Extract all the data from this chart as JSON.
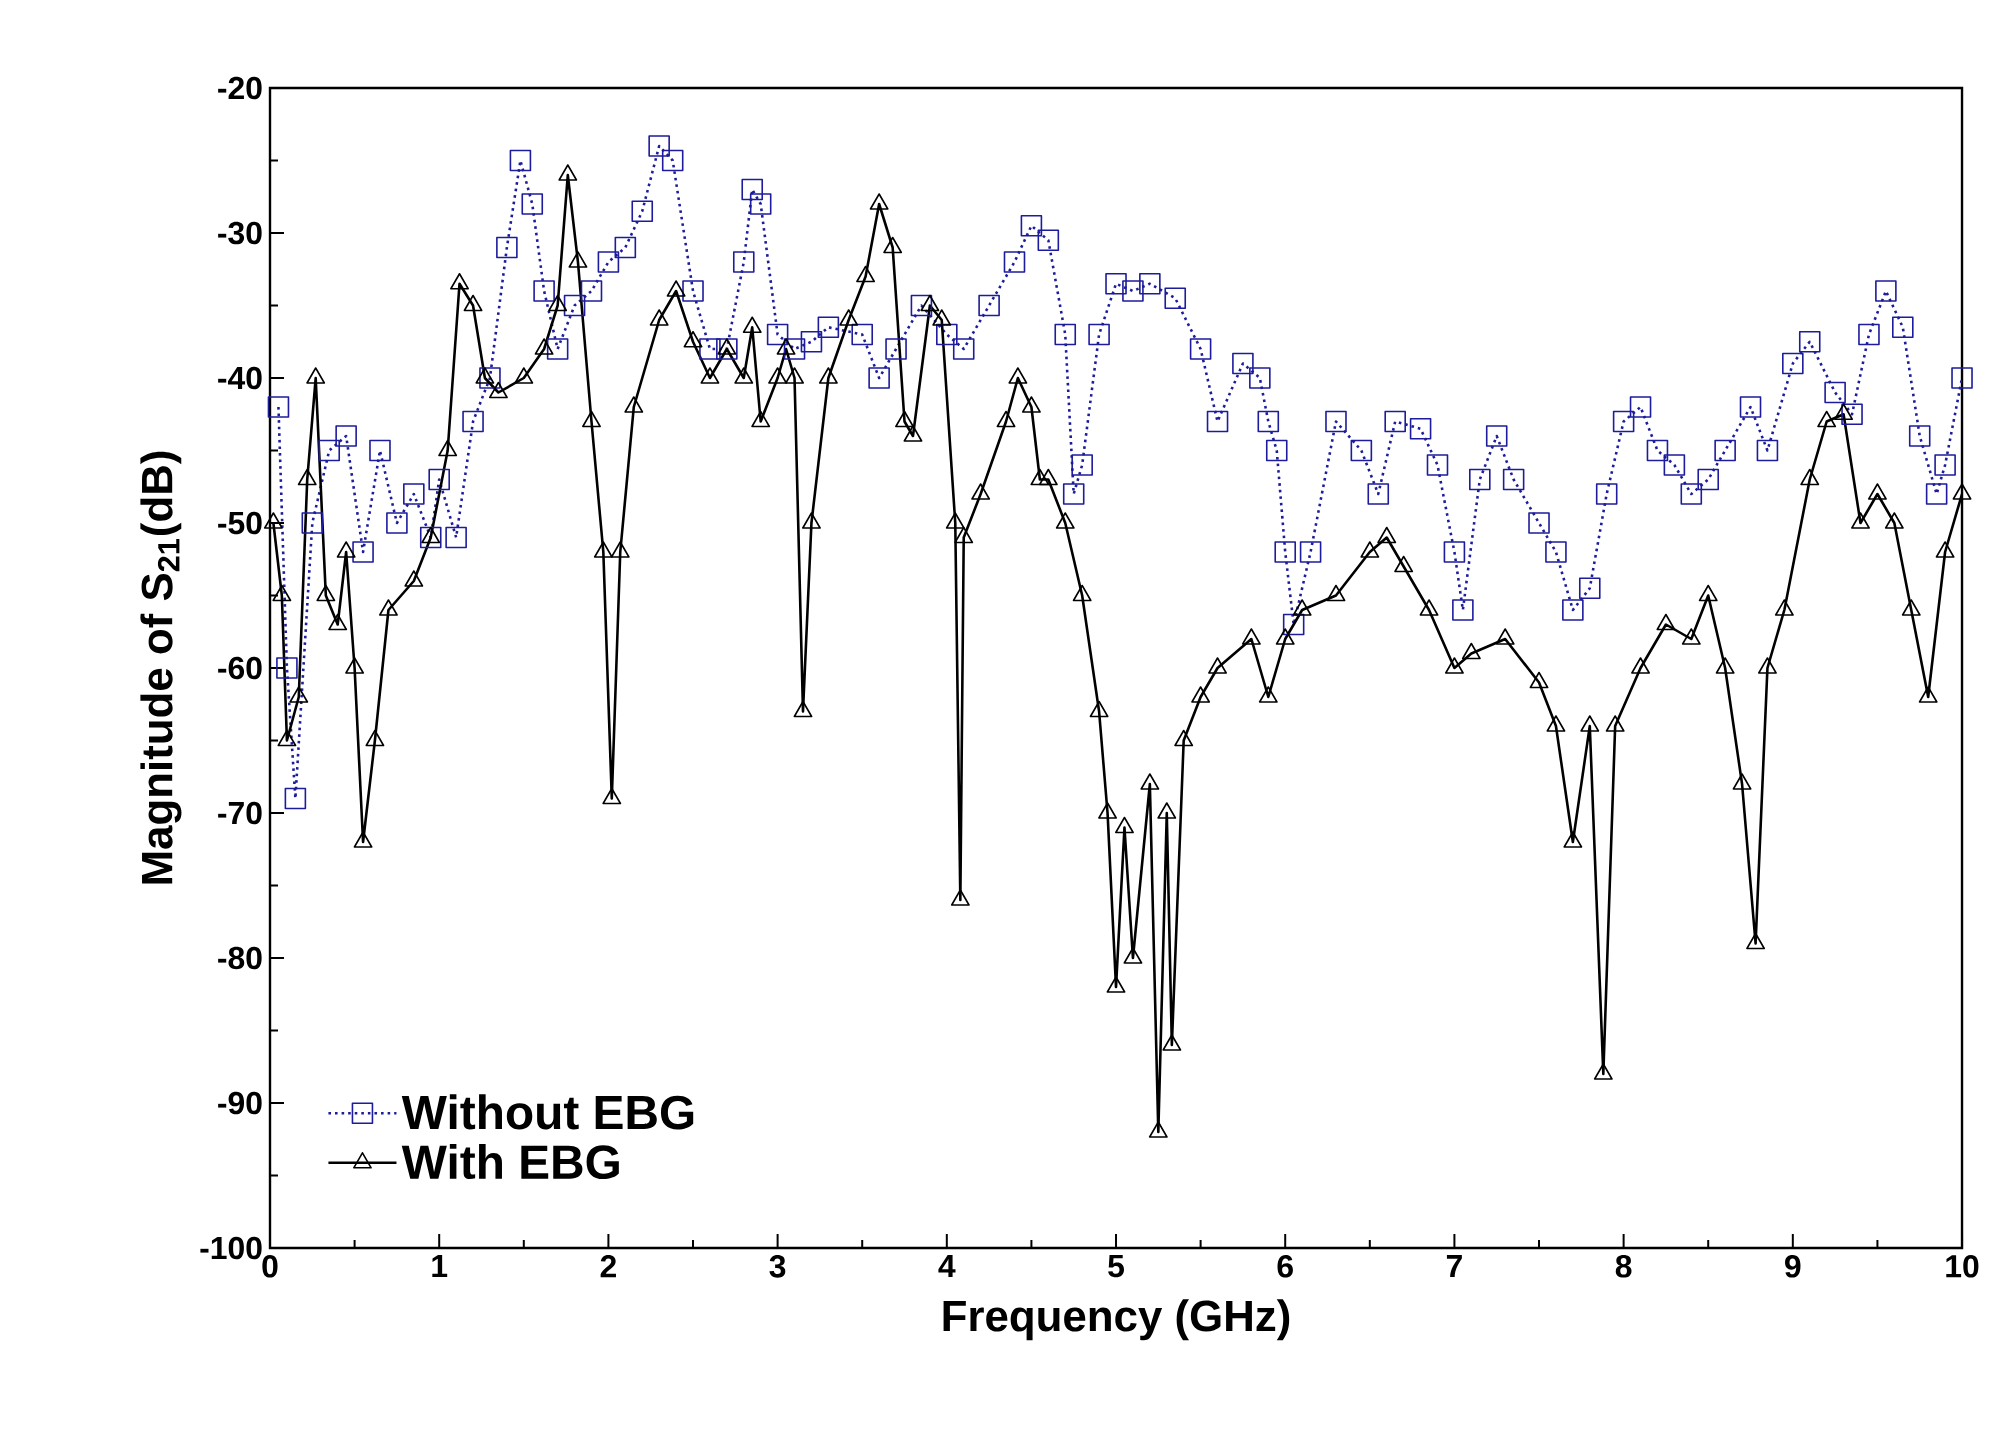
{
  "chart_data": {
    "type": "line",
    "xlabel": "Frequency (GHz)",
    "ylabel": "Magnitude of S$_{21}$(dB)",
    "xlim": [
      0,
      10
    ],
    "ylim": [
      -100,
      -20
    ],
    "xticks": [
      0,
      1,
      2,
      3,
      4,
      5,
      6,
      7,
      8,
      9,
      10
    ],
    "yticks": [
      -100,
      -90,
      -80,
      -70,
      -60,
      -50,
      -40,
      -30,
      -20
    ],
    "grid": false,
    "legend": "bottom left",
    "series": [
      {
        "name": "Without EBG",
        "color": "#1c1c9c",
        "marker": "square",
        "line_style": "dotted",
        "x": [
          0.05,
          0.1,
          0.15,
          0.25,
          0.35,
          0.45,
          0.55,
          0.65,
          0.75,
          0.85,
          0.95,
          1.0,
          1.1,
          1.2,
          1.3,
          1.4,
          1.48,
          1.55,
          1.62,
          1.7,
          1.8,
          1.9,
          2.0,
          2.1,
          2.2,
          2.3,
          2.38,
          2.5,
          2.6,
          2.7,
          2.8,
          2.85,
          2.9,
          3.0,
          3.1,
          3.2,
          3.3,
          3.5,
          3.6,
          3.7,
          3.85,
          4.0,
          4.1,
          4.25,
          4.4,
          4.5,
          4.6,
          4.7,
          4.75,
          4.8,
          4.9,
          5.0,
          5.1,
          5.2,
          5.35,
          5.5,
          5.6,
          5.75,
          5.85,
          5.9,
          5.95,
          6.0,
          6.05,
          6.15,
          6.3,
          6.45,
          6.55,
          6.65,
          6.8,
          6.9,
          7.0,
          7.05,
          7.15,
          7.25,
          7.35,
          7.5,
          7.6,
          7.7,
          7.8,
          7.9,
          8.0,
          8.1,
          8.2,
          8.3,
          8.4,
          8.5,
          8.6,
          8.75,
          8.85,
          9.0,
          9.1,
          9.25,
          9.35,
          9.45,
          9.55,
          9.65,
          9.75,
          9.85,
          9.9,
          10.0
        ],
        "values": [
          -42,
          -60,
          -69,
          -50,
          -45,
          -44,
          -52,
          -45,
          -50,
          -48,
          -51,
          -47,
          -51,
          -43,
          -40,
          -31,
          -25,
          -28,
          -34,
          -38,
          -35,
          -34,
          -32,
          -31,
          -28.5,
          -24,
          -25,
          -34,
          -38,
          -38,
          -32,
          -27,
          -28,
          -37,
          -38,
          -37.5,
          -36.5,
          -37,
          -40,
          -38,
          -35,
          -37,
          -38,
          -35,
          -32,
          -29.5,
          -30.5,
          -37,
          -48,
          -46,
          -37,
          -33.5,
          -34,
          -33.5,
          -34.5,
          -38,
          -43,
          -39,
          -40,
          -43,
          -45,
          -52,
          -57,
          -52,
          -43,
          -45,
          -48,
          -43,
          -43.5,
          -46,
          -52,
          -56,
          -47,
          -44,
          -47,
          -50,
          -52,
          -56,
          -54.5,
          -48,
          -43,
          -42,
          -45,
          -46,
          -48,
          -47,
          -45,
          -42,
          -45,
          -39,
          -37.5,
          -41,
          -42.5,
          -37,
          -34,
          -36.5,
          -44,
          -48,
          -46,
          -40
        ]
      },
      {
        "name": "With EBG",
        "color": "#000000",
        "marker": "triangle",
        "line_style": "solid",
        "x": [
          0.02,
          0.07,
          0.1,
          0.17,
          0.22,
          0.27,
          0.33,
          0.4,
          0.45,
          0.5,
          0.55,
          0.62,
          0.7,
          0.85,
          0.95,
          1.05,
          1.12,
          1.2,
          1.27,
          1.35,
          1.5,
          1.62,
          1.7,
          1.76,
          1.82,
          1.9,
          1.97,
          2.02,
          2.07,
          2.15,
          2.3,
          2.4,
          2.5,
          2.6,
          2.7,
          2.8,
          2.85,
          2.9,
          3.0,
          3.05,
          3.1,
          3.15,
          3.2,
          3.3,
          3.42,
          3.52,
          3.6,
          3.68,
          3.75,
          3.8,
          3.9,
          3.97,
          4.05,
          4.08,
          4.1,
          4.2,
          4.35,
          4.42,
          4.5,
          4.55,
          4.6,
          4.7,
          4.8,
          4.9,
          4.95,
          5.0,
          5.05,
          5.1,
          5.2,
          5.25,
          5.3,
          5.33,
          5.4,
          5.5,
          5.6,
          5.8,
          5.9,
          6.0,
          6.1,
          6.3,
          6.5,
          6.6,
          6.7,
          6.85,
          7.0,
          7.1,
          7.3,
          7.5,
          7.6,
          7.7,
          7.8,
          7.88,
          7.95,
          8.1,
          8.25,
          8.4,
          8.5,
          8.6,
          8.7,
          8.78,
          8.85,
          8.95,
          9.1,
          9.2,
          9.3,
          9.4,
          9.5,
          9.6,
          9.7,
          9.8,
          9.9,
          10.0
        ],
        "values": [
          -50,
          -55,
          -65,
          -62,
          -47,
          -40,
          -55,
          -57,
          -52,
          -60,
          -72,
          -65,
          -56,
          -54,
          -51,
          -45,
          -33.5,
          -35,
          -40,
          -41,
          -40,
          -38,
          -35,
          -26,
          -32,
          -43,
          -52,
          -69,
          -52,
          -42,
          -36,
          -34,
          -37.5,
          -40,
          -38,
          -40,
          -36.5,
          -43,
          -40,
          -38,
          -40,
          -63,
          -50,
          -40,
          -36,
          -33,
          -28,
          -31,
          -43,
          -44,
          -35,
          -36,
          -50,
          -76,
          -51,
          -48,
          -43,
          -40,
          -42,
          -47,
          -47,
          -50,
          -55,
          -63,
          -70,
          -82,
          -71,
          -80,
          -68,
          -92,
          -70,
          -86,
          -65,
          -62,
          -60,
          -58,
          -62,
          -58,
          -56,
          -55,
          -52,
          -51,
          -53,
          -56,
          -60,
          -59,
          -58,
          -61,
          -64,
          -72,
          -64,
          -88,
          -64,
          -60,
          -57,
          -58,
          -55,
          -60,
          -68,
          -79,
          -60,
          -56,
          -47,
          -43,
          -42.5,
          -50,
          -48,
          -50,
          -56,
          -62,
          -52,
          -48
        ]
      }
    ]
  }
}
